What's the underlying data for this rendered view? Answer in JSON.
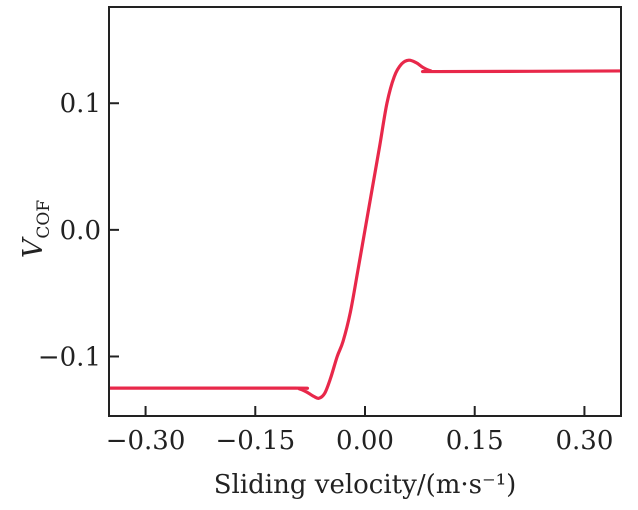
{
  "chart_data": {
    "type": "line",
    "title": "",
    "xlabel": "Sliding velocity/(m·s⁻¹)",
    "ylabel_main": "V",
    "ylabel_sub": "COF",
    "xlim": [
      -0.35,
      0.35
    ],
    "ylim": [
      -0.147,
      0.176
    ],
    "xticks": [
      -0.3,
      -0.15,
      0.0,
      0.15,
      0.3
    ],
    "xtick_labels": [
      "−0.30",
      "−0.15",
      "0.00",
      "0.15",
      "0.30"
    ],
    "yticks": [
      -0.1,
      0.0,
      0.1
    ],
    "ytick_labels": [
      "−0.1",
      "0.0",
      "0.1"
    ],
    "grid": false,
    "series": [
      {
        "name": "V_COF",
        "color": "#e8284a",
        "x": [
          -0.35,
          -0.1,
          -0.09,
          -0.08,
          -0.07,
          -0.063,
          -0.055,
          -0.047,
          -0.038,
          -0.03,
          -0.02,
          -0.01,
          0.0,
          0.01,
          0.02,
          0.03,
          0.04,
          0.05,
          0.06,
          0.07,
          0.08,
          0.09,
          0.1,
          0.35
        ],
        "y": [
          -0.125,
          -0.125,
          -0.1255,
          -0.128,
          -0.1315,
          -0.133,
          -0.129,
          -0.117,
          -0.1,
          -0.088,
          -0.065,
          -0.033,
          0.0,
          0.033,
          0.066,
          0.1,
          0.121,
          0.131,
          0.134,
          0.132,
          0.128,
          0.1255,
          0.125,
          0.1255
        ]
      }
    ]
  }
}
